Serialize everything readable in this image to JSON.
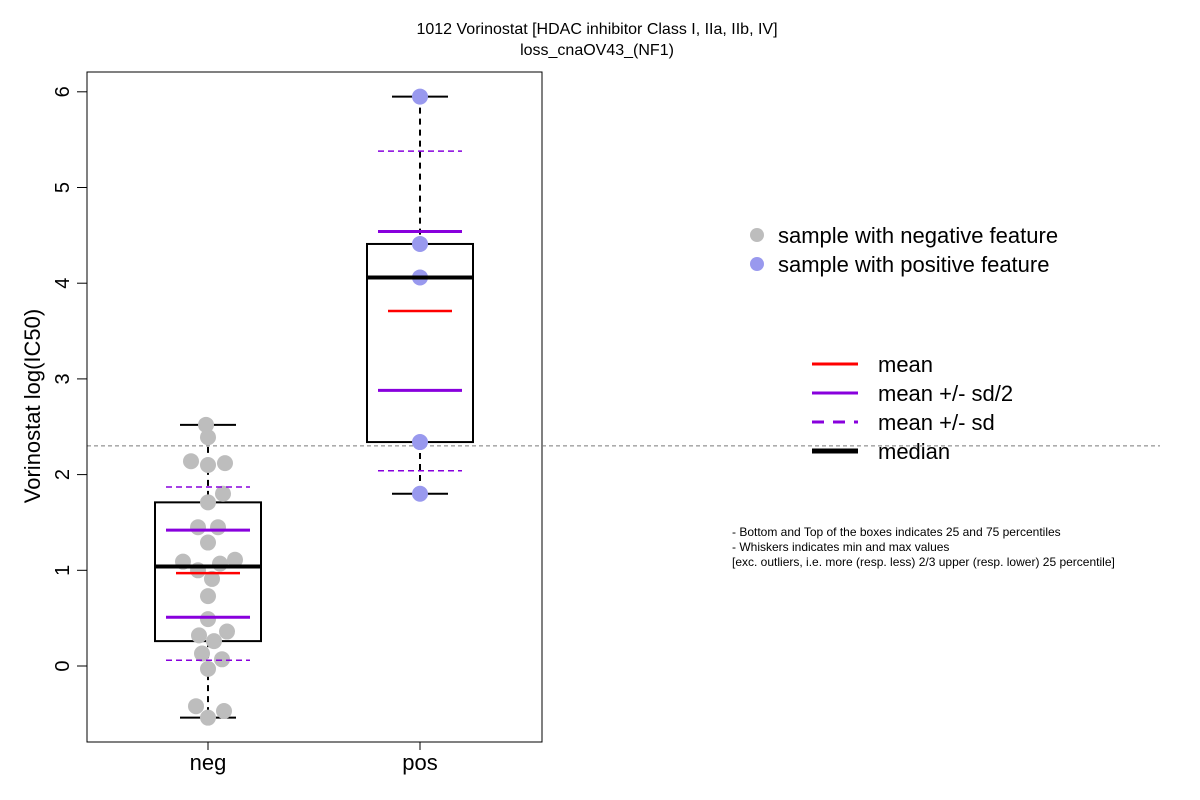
{
  "chart_data": {
    "type": "box",
    "title": "1012 Vorinostat [HDAC inhibitor Class I, IIa, IIb, IV]",
    "subtitle": "loss_cnaOV43_(NF1)",
    "ylabel": "Vorinostat log(IC50)",
    "xlabel": "",
    "ylim": [
      -0.8,
      6.2
    ],
    "yticks": [
      0,
      1,
      2,
      3,
      4,
      5,
      6
    ],
    "reference_line": 2.3,
    "grid": false,
    "legend_position": "right",
    "groups": [
      {
        "category": "neg",
        "point_color": "#bdbdbd",
        "min": -0.54,
        "q1": 0.26,
        "median": 1.04,
        "q3": 1.71,
        "max": 2.52,
        "mean": 0.97,
        "mean_minus_half_sd": 0.51,
        "mean_plus_half_sd": 1.42,
        "mean_minus_sd": 0.06,
        "mean_plus_sd": 1.87,
        "points": [
          [
            -0.02,
            2.52
          ],
          [
            0.0,
            2.39
          ],
          [
            -0.17,
            2.14
          ],
          [
            0.0,
            2.1
          ],
          [
            0.17,
            2.12
          ],
          [
            0.15,
            1.8
          ],
          [
            0.0,
            1.71
          ],
          [
            -0.1,
            1.45
          ],
          [
            0.1,
            1.45
          ],
          [
            0.0,
            1.29
          ],
          [
            -0.25,
            1.09
          ],
          [
            0.27,
            1.11
          ],
          [
            0.12,
            1.07
          ],
          [
            -0.1,
            1.0
          ],
          [
            0.04,
            0.91
          ],
          [
            0.0,
            0.73
          ],
          [
            0.0,
            0.49
          ],
          [
            0.19,
            0.36
          ],
          [
            -0.09,
            0.32
          ],
          [
            0.06,
            0.26
          ],
          [
            -0.06,
            0.13
          ],
          [
            0.14,
            0.07
          ],
          [
            0.0,
            -0.03
          ],
          [
            -0.12,
            -0.42
          ],
          [
            0.16,
            -0.47
          ],
          [
            0.0,
            -0.54
          ]
        ]
      },
      {
        "category": "pos",
        "point_color": "#9999ee",
        "min": 1.8,
        "q1": 2.34,
        "median": 4.06,
        "q3": 4.41,
        "max": 5.95,
        "mean": 3.71,
        "mean_minus_half_sd": 2.88,
        "mean_plus_half_sd": 4.54,
        "mean_minus_sd": 2.04,
        "mean_plus_sd": 5.38,
        "points": [
          [
            0.0,
            5.95
          ],
          [
            0.0,
            4.41
          ],
          [
            0.0,
            4.06
          ],
          [
            0.0,
            2.34
          ],
          [
            0.0,
            1.8
          ]
        ]
      }
    ]
  },
  "legend": {
    "samples": [
      {
        "label": "sample with negative feature",
        "color": "#bdbdbd"
      },
      {
        "label": "sample with positive feature",
        "color": "#9999ee"
      }
    ],
    "stats": [
      {
        "label": "mean",
        "color": "#ff0000",
        "style": "solid"
      },
      {
        "label": "mean +/- sd/2",
        "color": "#8800dd",
        "style": "solid"
      },
      {
        "label": "mean +/- sd",
        "color": "#8800dd",
        "style": "dashed"
      },
      {
        "label": "median",
        "color": "#000000",
        "style": "thick"
      }
    ]
  },
  "notes": [
    "- Bottom and Top of the boxes indicates 25 and 75 percentiles",
    "- Whiskers indicates min and max values",
    "[exc. outliers, i.e. more (resp. less) 2/3 upper (resp. lower) 25 percentile]"
  ]
}
